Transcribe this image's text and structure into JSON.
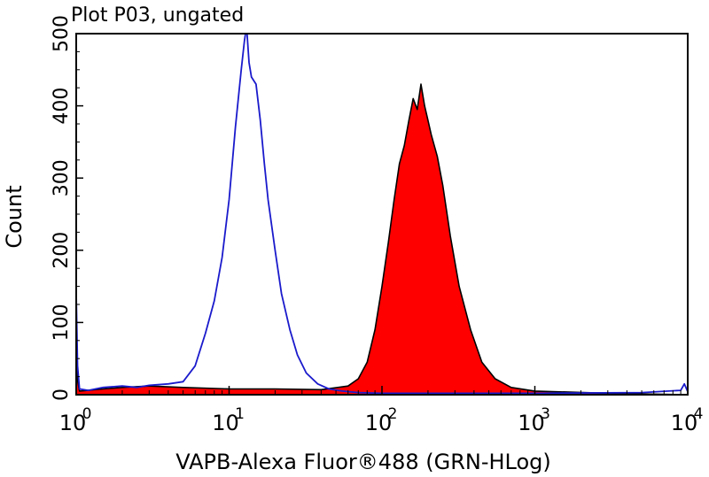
{
  "chart_data": {
    "type": "area",
    "title": "Plot P03, ungated",
    "xlabel": "VAPB-Alexa Fluor®488 (GRN-HLog)",
    "ylabel": "Count",
    "x_scale": "log",
    "xlim": [
      1,
      10000
    ],
    "ylim": [
      0,
      500
    ],
    "x_ticks": [
      {
        "base": "10",
        "exp": "0",
        "value": 1
      },
      {
        "base": "10",
        "exp": "1",
        "value": 10
      },
      {
        "base": "10",
        "exp": "2",
        "value": 100
      },
      {
        "base": "10",
        "exp": "3",
        "value": 1000
      },
      {
        "base": "10",
        "exp": "4",
        "value": 10000
      }
    ],
    "y_ticks": [
      "0",
      "100",
      "200",
      "300",
      "400",
      "500"
    ],
    "y_tick_values": [
      0,
      100,
      200,
      300,
      400,
      500
    ],
    "series": [
      {
        "style": "outline",
        "color": "#1a1acc",
        "points": [
          [
            1,
            140
          ],
          [
            1.02,
            40
          ],
          [
            1.05,
            8
          ],
          [
            1.2,
            6
          ],
          [
            1.5,
            10
          ],
          [
            2,
            12
          ],
          [
            2.5,
            10
          ],
          [
            3,
            13
          ],
          [
            4,
            15
          ],
          [
            5,
            18
          ],
          [
            6,
            40
          ],
          [
            7,
            85
          ],
          [
            8,
            130
          ],
          [
            9,
            190
          ],
          [
            10,
            270
          ],
          [
            11,
            370
          ],
          [
            12,
            450
          ],
          [
            12.6,
            490
          ],
          [
            13,
            510
          ],
          [
            13.5,
            460
          ],
          [
            14,
            440
          ],
          [
            15,
            430
          ],
          [
            16,
            380
          ],
          [
            17,
            320
          ],
          [
            18,
            270
          ],
          [
            20,
            200
          ],
          [
            22,
            140
          ],
          [
            25,
            90
          ],
          [
            28,
            55
          ],
          [
            32,
            30
          ],
          [
            38,
            15
          ],
          [
            45,
            8
          ],
          [
            55,
            5
          ],
          [
            70,
            3
          ],
          [
            100,
            2
          ],
          [
            1000,
            2
          ],
          [
            5000,
            3
          ],
          [
            9000,
            6
          ],
          [
            9500,
            15
          ],
          [
            10000,
            4
          ]
        ]
      },
      {
        "style": "filled",
        "color": "#ff0000",
        "outline": "#000000",
        "points": [
          [
            1,
            90
          ],
          [
            1.02,
            20
          ],
          [
            1.05,
            5
          ],
          [
            1.5,
            8
          ],
          [
            2,
            10
          ],
          [
            3,
            12
          ],
          [
            5,
            10
          ],
          [
            10,
            8
          ],
          [
            20,
            8
          ],
          [
            40,
            7
          ],
          [
            60,
            12
          ],
          [
            70,
            22
          ],
          [
            80,
            45
          ],
          [
            90,
            90
          ],
          [
            100,
            150
          ],
          [
            110,
            210
          ],
          [
            120,
            270
          ],
          [
            130,
            320
          ],
          [
            140,
            345
          ],
          [
            150,
            380
          ],
          [
            160,
            410
          ],
          [
            170,
            395
          ],
          [
            180,
            430
          ],
          [
            190,
            400
          ],
          [
            200,
            380
          ],
          [
            210,
            360
          ],
          [
            230,
            330
          ],
          [
            250,
            290
          ],
          [
            280,
            220
          ],
          [
            320,
            150
          ],
          [
            380,
            90
          ],
          [
            450,
            45
          ],
          [
            550,
            22
          ],
          [
            700,
            10
          ],
          [
            1000,
            5
          ],
          [
            3000,
            2
          ],
          [
            10000,
            0
          ]
        ]
      }
    ]
  }
}
